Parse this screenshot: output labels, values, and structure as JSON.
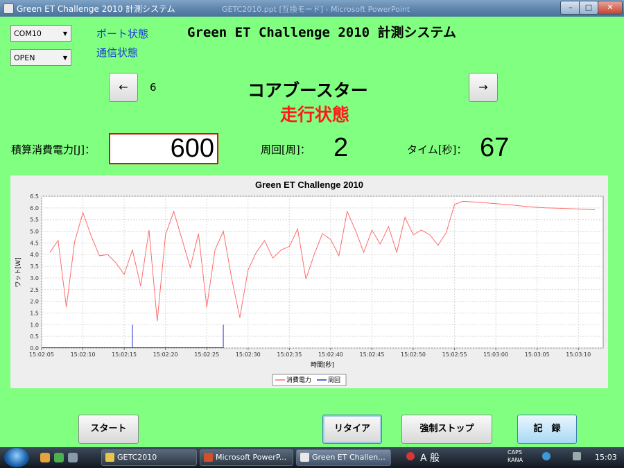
{
  "window": {
    "title": "Green ET Challenge 2010 計測システム",
    "ghost_title": "GETC2010.ppt [互換モード] - Microsoft PowerPoint",
    "controls": [
      "–",
      "□",
      "✕"
    ]
  },
  "port": {
    "selected": "COM10",
    "status_label": "ポート状態"
  },
  "comm": {
    "selected": "OPEN",
    "status_label": "通信状態"
  },
  "app_title": "Green ET Challenge 2010 計測システム",
  "nav": {
    "prev": "←",
    "next": "→",
    "index": "6"
  },
  "team_name": "コアブースター",
  "run_state": "走行状態",
  "metrics": {
    "energy_label": "積算消費電力[J]：",
    "energy_value": "600",
    "laps_label": "周回[周]：",
    "laps_value": "2",
    "time_label": "タイム[秒]：",
    "time_value": "67"
  },
  "chart_data": {
    "type": "line",
    "title": "Green ET Challenge 2010",
    "xlabel": "時間[秒]",
    "ylabel": "ワット[W]",
    "xlim": [
      "15:02:05",
      "15:03:13"
    ],
    "ylim": [
      0,
      6.5
    ],
    "yticks": [
      "0.0",
      "0.5",
      "1.0",
      "1.5",
      "2.0",
      "2.5",
      "3.0",
      "3.5",
      "4.0",
      "4.5",
      "5.0",
      "5.5",
      "6.0",
      "6.5"
    ],
    "xticks": [
      "15:02:05",
      "15:02:10",
      "15:02:15",
      "15:02:20",
      "15:02:25",
      "15:02:30",
      "15:02:35",
      "15:02:40",
      "15:02:45",
      "15:02:50",
      "15:02:55",
      "15:03:00",
      "15:03:05",
      "15:03:10"
    ],
    "grid": true,
    "legend": "bottom",
    "series": [
      {
        "name": "消費電力",
        "color": "#ff6b6b",
        "points": [
          [
            "15:02:06",
            4.1
          ],
          [
            "15:02:07",
            4.6
          ],
          [
            "15:02:08",
            1.75
          ],
          [
            "15:02:09",
            4.55
          ],
          [
            "15:02:10",
            5.8
          ],
          [
            "15:02:11",
            4.8
          ],
          [
            "15:02:12",
            3.95
          ],
          [
            "15:02:13",
            4.0
          ],
          [
            "15:02:14",
            3.65
          ],
          [
            "15:02:15",
            3.15
          ],
          [
            "15:02:16",
            4.2
          ],
          [
            "15:02:17",
            2.65
          ],
          [
            "15:02:18",
            5.05
          ],
          [
            "15:02:19",
            1.15
          ],
          [
            "15:02:20",
            4.85
          ],
          [
            "15:02:21",
            5.85
          ],
          [
            "15:02:22",
            4.65
          ],
          [
            "15:02:23",
            3.45
          ],
          [
            "15:02:24",
            4.9
          ],
          [
            "15:02:25",
            1.75
          ],
          [
            "15:02:26",
            4.2
          ],
          [
            "15:02:27",
            5.0
          ],
          [
            "15:02:28",
            3.0
          ],
          [
            "15:02:29",
            1.3
          ],
          [
            "15:02:30",
            3.35
          ],
          [
            "15:02:31",
            4.1
          ],
          [
            "15:02:32",
            4.6
          ],
          [
            "15:02:33",
            3.85
          ],
          [
            "15:02:34",
            4.2
          ],
          [
            "15:02:35",
            4.35
          ],
          [
            "15:02:36",
            5.1
          ],
          [
            "15:02:37",
            2.95
          ],
          [
            "15:02:38",
            4.0
          ],
          [
            "15:02:39",
            4.9
          ],
          [
            "15:02:40",
            4.65
          ],
          [
            "15:02:41",
            3.95
          ],
          [
            "15:02:42",
            5.85
          ],
          [
            "15:02:43",
            5.05
          ],
          [
            "15:02:44",
            4.1
          ],
          [
            "15:02:45",
            5.05
          ],
          [
            "15:02:46",
            4.45
          ],
          [
            "15:02:47",
            5.2
          ],
          [
            "15:02:48",
            4.1
          ],
          [
            "15:02:49",
            5.6
          ],
          [
            "15:02:50",
            4.85
          ],
          [
            "15:02:51",
            5.05
          ],
          [
            "15:02:52",
            4.85
          ],
          [
            "15:02:53",
            4.4
          ],
          [
            "15:02:54",
            4.95
          ],
          [
            "15:02:55",
            6.15
          ],
          [
            "15:02:56",
            6.28
          ],
          [
            "15:02:58",
            6.24
          ],
          [
            "15:03:00",
            6.18
          ],
          [
            "15:03:02",
            6.12
          ],
          [
            "15:03:04",
            6.05
          ],
          [
            "15:03:06",
            6.0
          ],
          [
            "15:03:08",
            5.98
          ],
          [
            "15:03:10",
            5.95
          ],
          [
            "15:03:12",
            5.92
          ]
        ]
      },
      {
        "name": "周回",
        "color": "#2233cc",
        "points": [
          [
            "15:02:16",
            1.0
          ],
          [
            "15:02:27",
            1.0
          ]
        ],
        "style": "impulse"
      }
    ]
  },
  "buttons": {
    "start": "スタート",
    "retire": "リタイア",
    "force_stop": "強制ストップ",
    "record": "記　録"
  },
  "taskbar": {
    "tasks": [
      "GETC2010",
      "Microsoft PowerP...",
      "Green ET Challen..."
    ],
    "ime": "A 般",
    "caps": "CAPS",
    "kana": "KANA",
    "clock": "15:03"
  }
}
